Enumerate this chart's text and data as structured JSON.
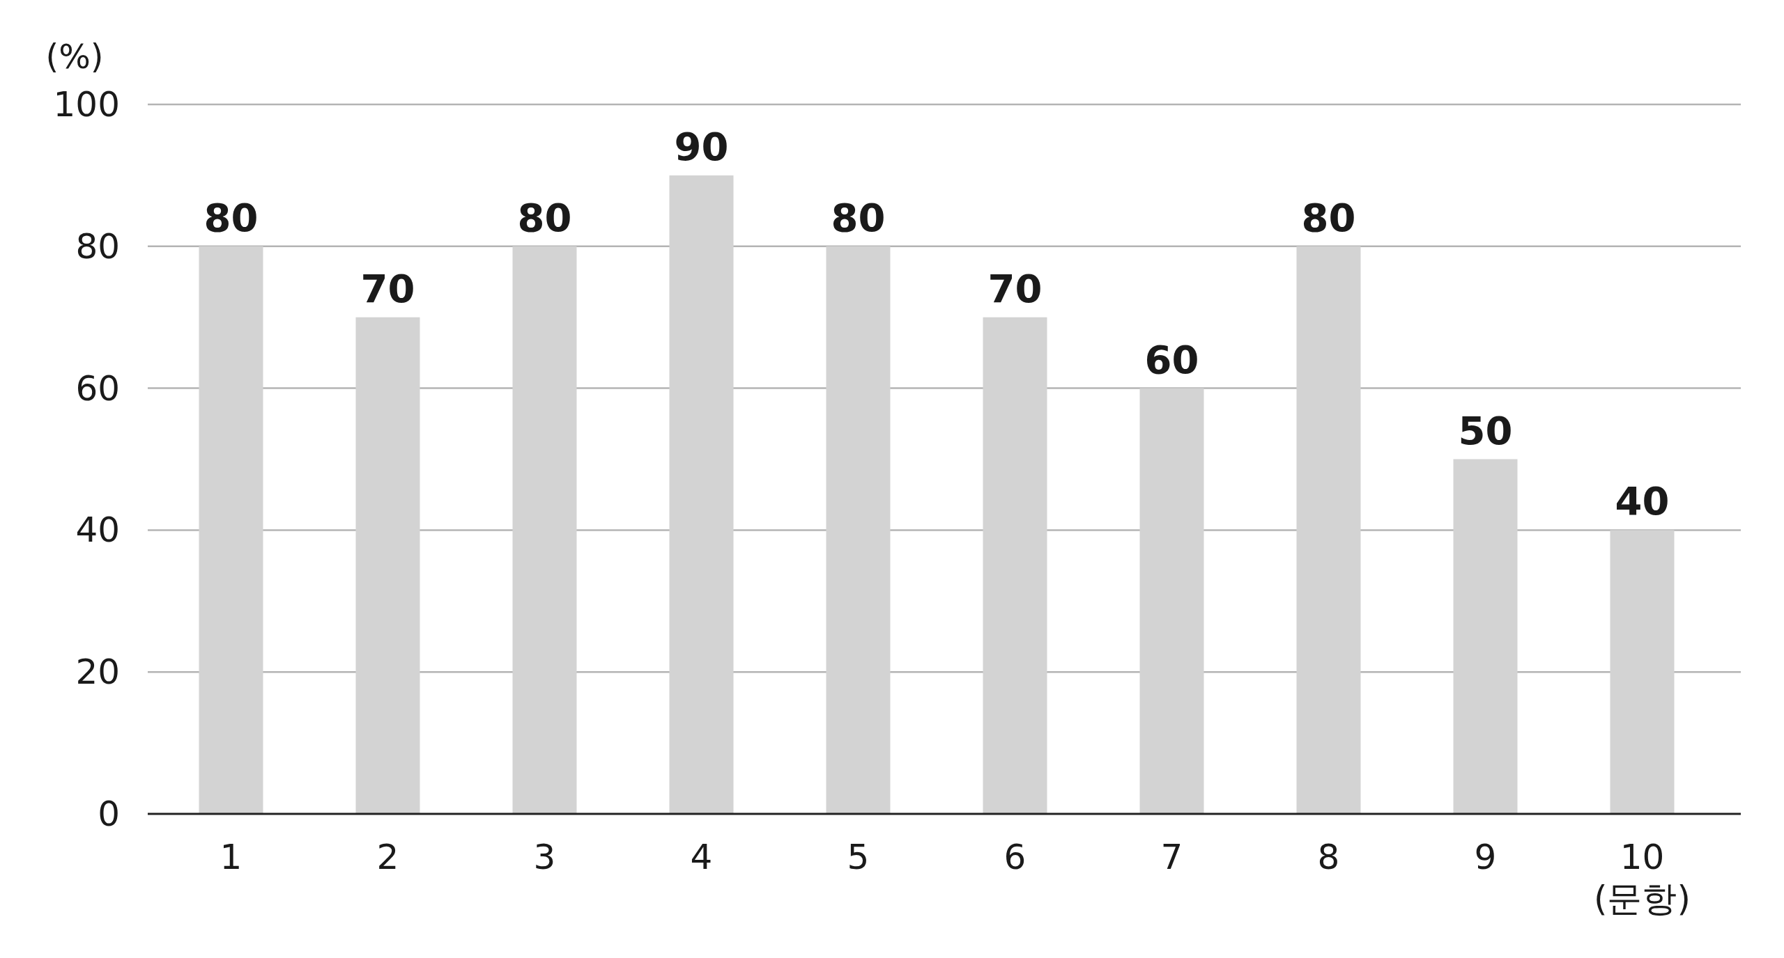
{
  "chart_data": {
    "type": "bar",
    "ylabel": "(%)",
    "xlabel": "(문항)",
    "categories": [
      "1",
      "2",
      "3",
      "4",
      "5",
      "6",
      "7",
      "8",
      "9",
      "10"
    ],
    "values": [
      80,
      70,
      80,
      90,
      80,
      70,
      60,
      80,
      50,
      40
    ],
    "color": "#d3d3d3",
    "ylim": [
      0,
      100
    ],
    "yticks": [
      0,
      20,
      40,
      60,
      80,
      100
    ],
    "grid": "y",
    "data_labels": true
  }
}
